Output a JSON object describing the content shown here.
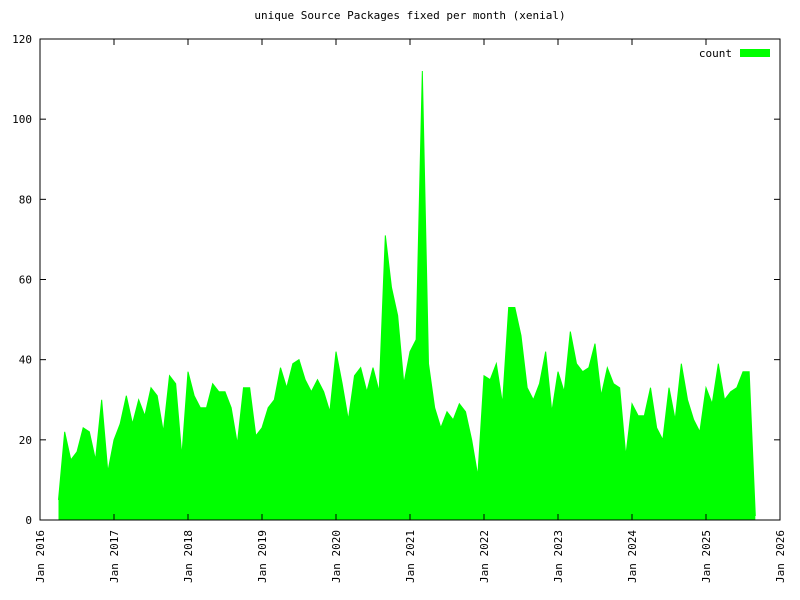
{
  "chart_data": {
    "type": "area",
    "title": "unique Source Packages fixed per month (xenial)",
    "x": [
      "2016-04",
      "2016-05",
      "2016-06",
      "2016-07",
      "2016-08",
      "2016-09",
      "2016-10",
      "2016-11",
      "2016-12",
      "2017-01",
      "2017-02",
      "2017-03",
      "2017-04",
      "2017-05",
      "2017-06",
      "2017-07",
      "2017-08",
      "2017-09",
      "2017-10",
      "2017-11",
      "2017-12",
      "2018-01",
      "2018-02",
      "2018-03",
      "2018-04",
      "2018-05",
      "2018-06",
      "2018-07",
      "2018-08",
      "2018-09",
      "2018-10",
      "2018-11",
      "2018-12",
      "2019-01",
      "2019-02",
      "2019-03",
      "2019-04",
      "2019-05",
      "2019-06",
      "2019-07",
      "2019-08",
      "2019-09",
      "2019-10",
      "2019-11",
      "2019-12",
      "2020-01",
      "2020-02",
      "2020-03",
      "2020-04",
      "2020-05",
      "2020-06",
      "2020-07",
      "2020-08",
      "2020-09",
      "2020-10",
      "2020-11",
      "2020-12",
      "2021-01",
      "2021-02",
      "2021-03",
      "2021-04",
      "2021-05",
      "2021-06",
      "2021-07",
      "2021-08",
      "2021-09",
      "2021-10",
      "2021-11",
      "2021-12",
      "2022-01",
      "2022-02",
      "2022-03",
      "2022-04",
      "2022-05",
      "2022-06",
      "2022-07",
      "2022-08",
      "2022-09",
      "2022-10",
      "2022-11",
      "2022-12",
      "2023-01",
      "2023-02",
      "2023-03",
      "2023-04",
      "2023-05",
      "2023-06",
      "2023-07",
      "2023-08",
      "2023-09",
      "2023-10",
      "2023-11",
      "2023-12",
      "2024-01",
      "2024-02",
      "2024-03",
      "2024-04",
      "2024-05",
      "2024-06",
      "2024-07",
      "2024-08",
      "2024-09",
      "2024-10",
      "2024-11",
      "2024-12",
      "2025-01",
      "2025-02",
      "2025-03",
      "2025-04",
      "2025-05",
      "2025-06",
      "2025-07",
      "2025-08",
      "2025-09"
    ],
    "series": [
      {
        "name": "count",
        "color": "#00ff00",
        "values": [
          5,
          22,
          15,
          17,
          23,
          22,
          15,
          30,
          12,
          20,
          24,
          31,
          24,
          30,
          26,
          33,
          31,
          22,
          36,
          34,
          16,
          37,
          31,
          28,
          28,
          34,
          32,
          32,
          28,
          19,
          33,
          33,
          21,
          23,
          28,
          30,
          38,
          33,
          39,
          40,
          35,
          32,
          35,
          32,
          27,
          42,
          34,
          25,
          36,
          38,
          32,
          38,
          32,
          71,
          58,
          51,
          34,
          42,
          45,
          112,
          39,
          28,
          23,
          27,
          25,
          29,
          27,
          20,
          11,
          36,
          35,
          39,
          29,
          53,
          53,
          46,
          33,
          30,
          34,
          42,
          27,
          37,
          32,
          47,
          39,
          37,
          38,
          44,
          31,
          38,
          34,
          33,
          16,
          29,
          26,
          26,
          33,
          23,
          20,
          33,
          25,
          39,
          30,
          25,
          22,
          33,
          29,
          39,
          30,
          32,
          33,
          37,
          37,
          1
        ]
      }
    ],
    "xlim": [
      "2016-01",
      "2026-01"
    ],
    "xticks": [
      {
        "value": "2016-01",
        "label": "Jan 2016"
      },
      {
        "value": "2017-01",
        "label": "Jan 2017"
      },
      {
        "value": "2018-01",
        "label": "Jan 2018"
      },
      {
        "value": "2019-01",
        "label": "Jan 2019"
      },
      {
        "value": "2020-01",
        "label": "Jan 2020"
      },
      {
        "value": "2021-01",
        "label": "Jan 2021"
      },
      {
        "value": "2022-01",
        "label": "Jan 2022"
      },
      {
        "value": "2023-01",
        "label": "Jan 2023"
      },
      {
        "value": "2024-01",
        "label": "Jan 2024"
      },
      {
        "value": "2025-01",
        "label": "Jan 2025"
      },
      {
        "value": "2026-01",
        "label": "Jan 2026"
      }
    ],
    "ylim": [
      0,
      120
    ],
    "yticks": [
      0,
      20,
      40,
      60,
      80,
      100,
      120
    ],
    "legend": "top right",
    "grid": false
  }
}
